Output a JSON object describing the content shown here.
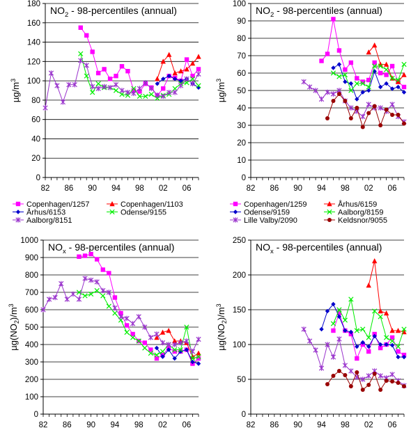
{
  "chart_data": [
    {
      "type": "line",
      "title": "NO2 - 98-percentiles (annual)",
      "title_main": "NO",
      "title_sub": "2",
      "title_rest": " - 98-percentiles (annual)",
      "ylabel": "µg/m3",
      "ylabel_main": "µg/m",
      "ylabel_sup": "3",
      "xlim": [
        1982,
        2008
      ],
      "ylim": [
        0,
        180
      ],
      "yticks": [
        0,
        20,
        40,
        60,
        80,
        100,
        120,
        140,
        160,
        180
      ],
      "xticks": [
        1982,
        1986,
        1990,
        1994,
        1998,
        2002,
        2006
      ],
      "xtick_labels": [
        "82",
        "86",
        "90",
        "94",
        "98",
        "02",
        "06"
      ],
      "grid": "horizontal",
      "legend_placement": "below",
      "series": [
        {
          "name": "Copenhagen/1257",
          "color": "#ff00ff",
          "marker": "square",
          "x": [
            1988,
            1989,
            1990,
            1991,
            1992,
            1993,
            1994,
            1995,
            1996,
            1997,
            1998,
            1999,
            2000,
            2001,
            2002,
            2003,
            2004,
            2005,
            2006,
            2007,
            2008
          ],
          "y": [
            155,
            147,
            130,
            108,
            112,
            102,
            105,
            115,
            110,
            90,
            89,
            97,
            93,
            85,
            92,
            105,
            103,
            100,
            122,
            105,
            112
          ]
        },
        {
          "name": "Copenhagen/1103",
          "color": "#ff0000",
          "marker": "triangle",
          "x": [
            2001,
            2002,
            2003,
            2004,
            2005,
            2006,
            2007,
            2008
          ],
          "y": [
            102,
            120,
            127,
            108,
            110,
            112,
            118,
            125
          ]
        },
        {
          "name": "Århus/6153",
          "color": "#0000cc",
          "marker": "diamond",
          "x": [
            2001,
            2002,
            2003,
            2004,
            2005,
            2006,
            2007,
            2008
          ],
          "y": [
            97,
            102,
            105,
            102,
            100,
            102,
            97,
            93
          ]
        },
        {
          "name": "Odense/9155",
          "color": "#00ee00",
          "marker": "x",
          "x": [
            1988,
            1989,
            1990,
            1991,
            1992,
            1993,
            1994,
            1995,
            1996,
            1997,
            1998,
            1999,
            2000,
            2001,
            2002,
            2003,
            2004,
            2005,
            2006,
            2007,
            2008
          ],
          "y": [
            128,
            105,
            88,
            97,
            93,
            93,
            90,
            86,
            85,
            92,
            84,
            84,
            86,
            82,
            85,
            86,
            92,
            97,
            98,
            102,
            95
          ]
        },
        {
          "name": "Aalborg/8151",
          "color": "#9933cc",
          "marker": "star",
          "x": [
            1982,
            1983,
            1984,
            1985,
            1986,
            1987,
            1988,
            1989,
            1990,
            1991,
            1992,
            1993,
            1994,
            1995,
            1996,
            1997,
            1998,
            1999,
            2000,
            2001,
            2002,
            2003,
            2004,
            2005,
            2006,
            2007,
            2008
          ],
          "y": [
            72,
            108,
            95,
            78,
            96,
            96,
            121,
            116,
            94,
            92,
            94,
            93,
            96,
            90,
            88,
            87,
            92,
            98,
            92,
            85,
            84,
            88,
            88,
            95,
            102,
            97,
            107
          ]
        }
      ]
    },
    {
      "type": "line",
      "title": "NO2 - 98-percentiles (annual)",
      "title_main": "NO",
      "title_sub": "2",
      "title_rest": " - 98-percentiles (annual)",
      "ylabel": "µg/m3",
      "ylabel_main": "µg/m",
      "ylabel_sup": "3",
      "xlim": [
        1982,
        2008
      ],
      "ylim": [
        0,
        100
      ],
      "yticks": [
        0,
        10,
        20,
        30,
        40,
        50,
        60,
        70,
        80,
        90,
        100
      ],
      "xticks": [
        1982,
        1986,
        1990,
        1994,
        1998,
        2002,
        2006
      ],
      "xtick_labels": [
        "82",
        "86",
        "90",
        "94",
        "98",
        "02",
        "06"
      ],
      "grid": "horizontal",
      "legend_placement": "below",
      "series": [
        {
          "name": "Copenhagen/1259",
          "color": "#ff00ff",
          "marker": "square",
          "x": [
            1994,
            1995,
            1996,
            1997,
            1998,
            1999,
            2000,
            2001,
            2002,
            2003,
            2004,
            2005,
            2006,
            2007,
            2008
          ],
          "y": [
            67,
            71,
            91,
            73,
            62,
            66,
            57,
            55,
            56,
            66,
            60,
            59,
            64,
            55,
            52
          ]
        },
        {
          "name": "Århus/6159",
          "color": "#ff0000",
          "marker": "triangle",
          "x": [
            2002,
            2003,
            2004,
            2005,
            2006,
            2007,
            2008
          ],
          "y": [
            72,
            76,
            65,
            65,
            57,
            55,
            59
          ]
        },
        {
          "name": "Odense/9159",
          "color": "#0000cc",
          "marker": "diamond",
          "x": [
            1996,
            1997,
            1998,
            1999,
            2000,
            2001,
            2002,
            2003,
            2004,
            2005,
            2006,
            2007,
            2008
          ],
          "y": [
            63,
            65,
            55,
            54,
            45,
            49,
            50,
            61,
            52,
            54,
            51,
            52,
            49
          ]
        },
        {
          "name": "Aalborg/8159",
          "color": "#00ee00",
          "marker": "x",
          "x": [
            1996,
            1997,
            1998,
            1999,
            2000,
            2001,
            2002,
            2003,
            2004,
            2005,
            2006,
            2007,
            2008
          ],
          "y": [
            60,
            58,
            59,
            50,
            54,
            54,
            52,
            64,
            64,
            62,
            57,
            56,
            65
          ]
        },
        {
          "name": "Lille Valby/2090",
          "color": "#9933cc",
          "marker": "star",
          "x": [
            1991,
            1992,
            1993,
            1994,
            1995,
            1996,
            1997,
            1998,
            1999,
            2000,
            2001,
            2002,
            2003,
            2004,
            2005,
            2006,
            2007,
            2008
          ],
          "y": [
            55,
            52,
            50,
            45,
            49,
            48,
            50,
            44,
            40,
            38,
            35,
            42,
            40,
            40,
            38,
            42,
            35,
            32
          ]
        },
        {
          "name": "Keldsnor/9055",
          "color": "#990000",
          "marker": "circle",
          "x": [
            1995,
            1996,
            1997,
            1998,
            1999,
            2000,
            2001,
            2002,
            2003,
            2004,
            2005,
            2006,
            2007,
            2008
          ],
          "y": [
            34,
            44,
            48,
            44,
            34,
            40,
            29,
            37,
            41,
            30,
            39,
            36,
            36,
            31
          ]
        }
      ]
    },
    {
      "type": "line",
      "title": "NOx - 98-percentiles (annual)",
      "title_main": "NO",
      "title_sub": "x",
      "title_rest": " - 98-percentiles (annual)",
      "ylabel": "µg(NO2)/m3",
      "ylabel_main": "µg(NO",
      "ylabel_sub": "2",
      "ylabel_mid": ")/m",
      "ylabel_sup": "3",
      "xlim": [
        1982,
        2008
      ],
      "ylim": [
        0,
        1000
      ],
      "yticks": [
        0,
        100,
        200,
        300,
        400,
        500,
        600,
        700,
        800,
        900,
        1000
      ],
      "xticks": [
        1982,
        1986,
        1990,
        1994,
        1998,
        2002,
        2006
      ],
      "xtick_labels": [
        "82",
        "86",
        "90",
        "94",
        "98",
        "02",
        "06"
      ],
      "grid": "horizontal",
      "legend_placement": "none",
      "series": [
        {
          "name": "Copenhagen/1257",
          "color": "#ff00ff",
          "marker": "square",
          "x": [
            1988,
            1989,
            1990,
            1991,
            1992,
            1993,
            1994,
            1995,
            1996,
            1997,
            1998,
            1999,
            2000,
            2001,
            2002,
            2003,
            2004,
            2005,
            2006,
            2007,
            2008
          ],
          "y": [
            905,
            910,
            920,
            890,
            830,
            810,
            670,
            580,
            510,
            460,
            420,
            410,
            370,
            320,
            340,
            380,
            360,
            360,
            370,
            290,
            320
          ]
        },
        {
          "name": "Copenhagen/1103",
          "color": "#ff0000",
          "marker": "triangle",
          "x": [
            2001,
            2002,
            2003,
            2004,
            2005,
            2006,
            2007,
            2008
          ],
          "y": [
            440,
            470,
            480,
            420,
            420,
            410,
            330,
            350
          ]
        },
        {
          "name": "Århus/6153",
          "color": "#0000cc",
          "marker": "diamond",
          "x": [
            2001,
            2002,
            2003,
            2004,
            2005,
            2006,
            2007,
            2008
          ],
          "y": [
            380,
            330,
            370,
            320,
            360,
            370,
            300,
            290
          ]
        },
        {
          "name": "Odense/9155",
          "color": "#00ee00",
          "marker": "x",
          "x": [
            1988,
            1989,
            1990,
            1991,
            1992,
            1993,
            1994,
            1995,
            1996,
            1997,
            1998,
            1999,
            2000,
            2001,
            2002,
            2003,
            2004,
            2005,
            2006,
            2007,
            2008
          ],
          "y": [
            700,
            680,
            690,
            710,
            680,
            620,
            580,
            540,
            470,
            440,
            420,
            380,
            350,
            340,
            360,
            400,
            370,
            370,
            500,
            320,
            330
          ]
        },
        {
          "name": "Aalborg/8151",
          "color": "#9933cc",
          "marker": "star",
          "x": [
            1982,
            1983,
            1984,
            1985,
            1986,
            1987,
            1988,
            1989,
            1990,
            1991,
            1992,
            1993,
            1994,
            1995,
            1996,
            1997,
            1998,
            1999,
            2000,
            2001,
            2002,
            2003,
            2004,
            2005,
            2006,
            2007,
            2008
          ],
          "y": [
            600,
            660,
            670,
            750,
            660,
            690,
            660,
            780,
            770,
            760,
            710,
            700,
            610,
            560,
            550,
            520,
            560,
            500,
            440,
            460,
            410,
            400,
            400,
            410,
            420,
            360,
            430
          ]
        }
      ]
    },
    {
      "type": "line",
      "title": "NOx - 98-percentiles (annual)",
      "title_main": "NO",
      "title_sub": "x",
      "title_rest": " - 98-percentiles (annual)",
      "ylabel": "µg(NO2)/m3",
      "ylabel_main": "µg(NO",
      "ylabel_sub": "2",
      "ylabel_mid": ")/m",
      "ylabel_sup": "3",
      "xlim": [
        1982,
        2008
      ],
      "ylim": [
        0,
        250
      ],
      "yticks": [
        0,
        50,
        100,
        150,
        200,
        250
      ],
      "xticks": [
        1982,
        1986,
        1990,
        1994,
        1998,
        2002,
        2006
      ],
      "xtick_labels": [
        "82",
        "86",
        "90",
        "94",
        "98",
        "02",
        "06"
      ],
      "grid": "horizontal",
      "legend_placement": "none",
      "series": [
        {
          "name": "Copenhagen/1259",
          "color": "#ff00ff",
          "marker": "square",
          "x": [
            1996,
            1997,
            1998,
            1999,
            2000,
            2001,
            2002,
            2003,
            2004,
            2005,
            2006,
            2007,
            2008
          ],
          "y": [
            120,
            145,
            120,
            115,
            80,
            100,
            90,
            115,
            95,
            100,
            110,
            90,
            85
          ]
        },
        {
          "name": "Århus/6159",
          "color": "#ff0000",
          "marker": "triangle",
          "x": [
            2002,
            2003,
            2004,
            2005,
            2006,
            2007,
            2008
          ],
          "y": [
            185,
            220,
            148,
            145,
            120,
            120,
            118
          ]
        },
        {
          "name": "Odense/9159",
          "color": "#0000cc",
          "marker": "diamond",
          "x": [
            1994,
            1995,
            1996,
            1997,
            1998,
            1999,
            2000,
            2001,
            2002,
            2003,
            2004,
            2005,
            2006,
            2007,
            2008
          ],
          "y": [
            122,
            148,
            158,
            140,
            120,
            118,
            97,
            103,
            97,
            112,
            100,
            100,
            99,
            82,
            82
          ]
        },
        {
          "name": "Aalborg/8159",
          "color": "#00ee00",
          "marker": "x",
          "x": [
            1996,
            1997,
            1998,
            1999,
            2000,
            2001,
            2002,
            2003,
            2004,
            2005,
            2006,
            2007,
            2008
          ],
          "y": [
            130,
            150,
            135,
            165,
            120,
            122,
            110,
            148,
            140,
            110,
            105,
            97,
            122
          ]
        },
        {
          "name": "Lille Valby/2090",
          "color": "#9933cc",
          "marker": "star",
          "x": [
            1991,
            1992,
            1993,
            1994,
            1995,
            1996,
            1997,
            1998,
            1999,
            2000,
            2001,
            2002,
            2003,
            2004,
            2005,
            2006,
            2007,
            2008
          ],
          "y": [
            122,
            105,
            92,
            66,
            100,
            82,
            108,
            70,
            62,
            53,
            50,
            55,
            62,
            55,
            52,
            57,
            48,
            41
          ]
        },
        {
          "name": "Keldsnor/9055",
          "color": "#990000",
          "marker": "circle",
          "x": [
            1995,
            1996,
            1997,
            1998,
            1999,
            2000,
            2001,
            2002,
            2003,
            2004,
            2005,
            2006,
            2007,
            2008
          ],
          "y": [
            43,
            55,
            62,
            56,
            40,
            60,
            35,
            42,
            58,
            35,
            48,
            47,
            45,
            40
          ]
        }
      ]
    }
  ]
}
